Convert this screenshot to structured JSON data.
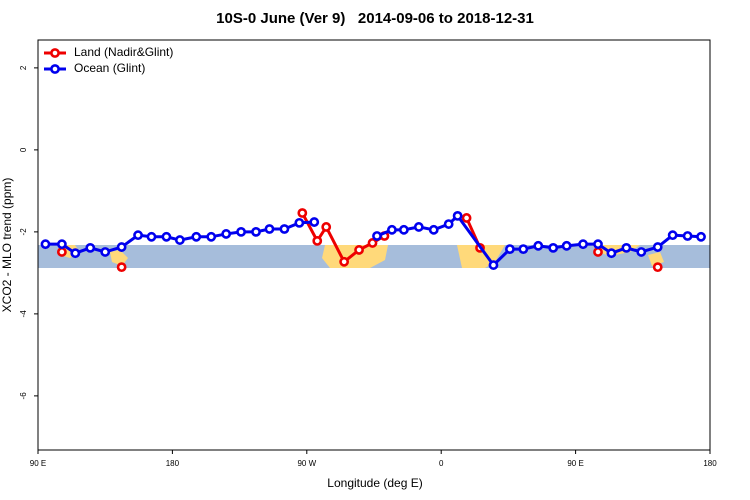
{
  "chart_data": {
    "type": "line",
    "title": "10S-0 June (Ver 9)   2014-09-06 to 2018-12-31",
    "x_label": "Longitude (deg E)",
    "y_label": "XCO2 - MLO trend (ppm)",
    "xlim": [
      90,
      540
    ],
    "xticks": [
      {
        "value": 90,
        "label": "90 E"
      },
      {
        "value": 180,
        "label": "180"
      },
      {
        "value": 270,
        "label": "90 W"
      },
      {
        "value": 360,
        "label": "0"
      },
      {
        "value": 450,
        "label": "90 E"
      },
      {
        "value": 540,
        "label": "180"
      }
    ],
    "ylim": [
      -7.32,
      2.68
    ],
    "yticks": [
      2,
      0,
      -2,
      -4,
      -6
    ],
    "legend": "top-left",
    "series": [
      {
        "name": "Land (Nadir&Glint)",
        "color": "#ee0000",
        "x": [
          106,
          null,
          146,
          null,
          267,
          277,
          283,
          295,
          305,
          314,
          322,
          null,
          377,
          386,
          null,
          465,
          null,
          505
        ],
        "values": [
          -2.49,
          null,
          -2.86,
          null,
          -1.54,
          -2.22,
          -1.88,
          -2.73,
          -2.44,
          -2.27,
          -2.1,
          null,
          -1.66,
          -2.39,
          null,
          -2.49,
          null,
          -2.86
        ]
      },
      {
        "name": "Ocean (Glint)",
        "color": "#0000ee",
        "x": [
          95,
          106,
          115,
          125,
          135,
          146,
          157,
          166,
          176,
          185,
          196,
          206,
          216,
          226,
          236,
          245,
          255,
          265,
          275,
          null,
          317,
          327,
          335,
          345,
          355,
          365,
          371,
          395,
          406,
          415,
          425,
          435,
          444,
          455,
          465,
          474,
          484,
          494,
          505,
          515,
          525,
          534
        ],
        "values": [
          -2.3,
          -2.3,
          -2.52,
          -2.39,
          -2.49,
          -2.37,
          -2.08,
          -2.12,
          -2.12,
          -2.2,
          -2.12,
          -2.12,
          -2.05,
          -2.0,
          -2.0,
          -1.93,
          -1.93,
          -1.78,
          -1.76,
          null,
          -2.1,
          -1.95,
          -1.95,
          -1.88,
          -1.95,
          -1.81,
          -1.61,
          -2.81,
          -2.42,
          -2.42,
          -2.34,
          -2.39,
          -2.34,
          -2.3,
          -2.3,
          -2.52,
          -2.39,
          -2.49,
          -2.37,
          -2.08,
          -2.1,
          -2.12
        ]
      }
    ]
  }
}
